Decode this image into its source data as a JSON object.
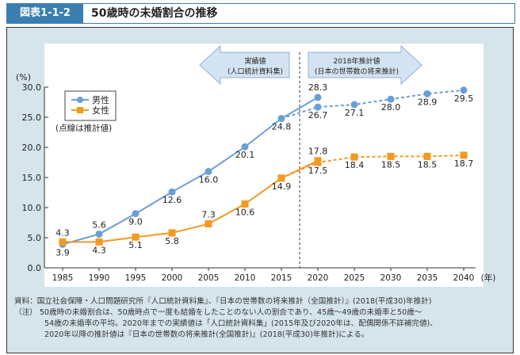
{
  "header": {
    "figure_number": "図表1-1-2",
    "title": "50歳時の未婚割合の推移"
  },
  "chart_data": {
    "type": "line",
    "x": [
      1985,
      1990,
      1995,
      2000,
      2005,
      2010,
      2015,
      2020,
      2025,
      2030,
      2035,
      2040
    ],
    "xlabel_unit": "(年)",
    "ylabel": "(%)",
    "ylim": [
      0,
      30
    ],
    "yticks": [
      "0.0",
      "5.0",
      "10.0",
      "15.0",
      "20.0",
      "25.0",
      "30.0"
    ],
    "grid": false,
    "legend_placement": "top-left",
    "legend_note": "(点線は推計値)",
    "divider_year": 2017.5,
    "arrow_left": {
      "line1": "実績値",
      "line2": "(人口統計資料集)"
    },
    "arrow_right": {
      "line1": "2018年推計値",
      "line2": "(日本の世帯数の将来推計)"
    },
    "series": [
      {
        "name": "男性",
        "color": "#6a9fd6",
        "marker": "circle",
        "actual": {
          "x": [
            1985,
            1990,
            1995,
            2000,
            2005,
            2010,
            2015,
            2020
          ],
          "values": [
            3.9,
            5.6,
            9.0,
            12.6,
            16.0,
            20.1,
            24.8,
            28.3
          ]
        },
        "projected": {
          "x": [
            2015,
            2020,
            2025,
            2030,
            2035,
            2040
          ],
          "values": [
            24.8,
            26.7,
            27.1,
            28.0,
            28.9,
            29.5
          ]
        }
      },
      {
        "name": "女性",
        "color": "#f39a22",
        "marker": "square",
        "actual": {
          "x": [
            1985,
            1990,
            1995,
            2000,
            2005,
            2010,
            2015,
            2020
          ],
          "values": [
            4.3,
            4.3,
            5.1,
            5.8,
            7.3,
            10.6,
            14.9,
            17.8
          ]
        },
        "projected": {
          "x": [
            2015,
            2020,
            2025,
            2030,
            2035,
            2040
          ],
          "values": [
            14.9,
            17.5,
            18.4,
            18.5,
            18.5,
            18.7
          ]
        }
      }
    ]
  },
  "notes": {
    "source": "資料：国立社会保障・人口問題研究所『人口統計資料集』、『日本の世帯数の将来推計（全国推計）』(2018(平成30)年推計)",
    "note1": "（注） 50歳時の未婚割合は、50歳時点で一度も結婚をしたことのない人の割合であり、45歳～49歳の未婚率と50歳～",
    "note2": "54歳の未婚率の平均。2020年までの実績値は「人口統計資料集」(2015年及び2020年は、配偶関係不詳補完値)、",
    "note3": "2020年以降の推計値は『日本の世帯数の将来推計(全国推計)』(2018(平成30)年推計)による。"
  }
}
